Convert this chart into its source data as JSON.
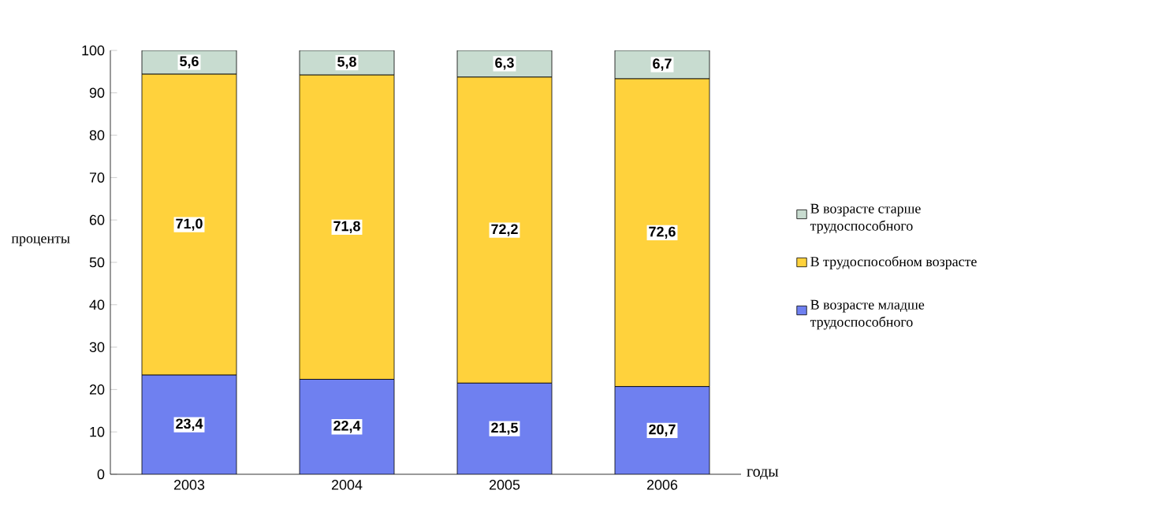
{
  "chart_data": {
    "type": "bar",
    "stacked": true,
    "xlabel": "годы",
    "ylabel": "проценты",
    "categories": [
      "2003",
      "2004",
      "2005",
      "2006"
    ],
    "series": [
      {
        "name": "В возрасте младше трудоспособного",
        "color": "#6f80f0",
        "values": [
          23.4,
          22.4,
          21.5,
          20.7
        ],
        "value_labels": [
          "23,4",
          "22,4",
          "21,5",
          "20,7"
        ]
      },
      {
        "name": "В трудоспособном возрасте",
        "color": "#ffd23c",
        "values": [
          71.0,
          71.8,
          72.2,
          72.6
        ],
        "value_labels": [
          "71,0",
          "71,8",
          "72,2",
          "72,6"
        ]
      },
      {
        "name": "В возрасте старше трудоспособного",
        "color": "#c8dcd0",
        "values": [
          5.6,
          5.8,
          6.3,
          6.7
        ],
        "value_labels": [
          "5,6",
          "5,8",
          "6,3",
          "6,7"
        ]
      }
    ],
    "ylim": [
      0,
      100
    ],
    "yticks": [
      0,
      10,
      20,
      30,
      40,
      50,
      60,
      70,
      80,
      90,
      100
    ],
    "legend": "right",
    "grid": false
  }
}
